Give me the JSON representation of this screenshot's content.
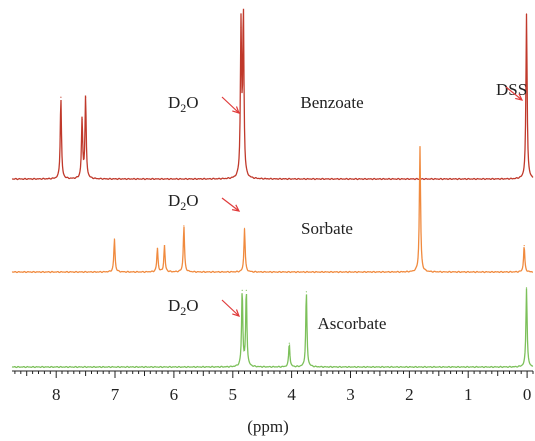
{
  "chart_data": {
    "type": "line",
    "title": "",
    "xlabel": "(ppm)",
    "ylabel": "",
    "x_reversed": true,
    "xlim": [
      8.75,
      -0.1
    ],
    "major_ticks": [
      8,
      7,
      6,
      5,
      4,
      3,
      2,
      1,
      0
    ],
    "minor_tick_step": 0.1,
    "grid": false,
    "series": [
      {
        "name": "Benzoate",
        "color": "#c0392b",
        "peaks": [
          {
            "ppm": 7.92,
            "height": 0.62
          },
          {
            "ppm": 7.56,
            "height": 0.45
          },
          {
            "ppm": 7.5,
            "height": 0.62
          },
          {
            "ppm": 4.86,
            "height": 1.15
          },
          {
            "ppm": 4.82,
            "height": 1.25
          },
          {
            "ppm": 0.01,
            "height": 1.25
          }
        ]
      },
      {
        "name": "Sorbate",
        "color": "#f08a3e",
        "peaks": [
          {
            "ppm": 7.01,
            "height": 0.25
          },
          {
            "ppm": 6.28,
            "height": 0.18
          },
          {
            "ppm": 6.16,
            "height": 0.2
          },
          {
            "ppm": 5.83,
            "height": 0.35
          },
          {
            "ppm": 4.8,
            "height": 0.33
          },
          {
            "ppm": 1.82,
            "height": 0.95
          },
          {
            "ppm": 0.05,
            "height": 0.2
          }
        ]
      },
      {
        "name": "Ascorbate",
        "color": "#7cc05a",
        "peaks": [
          {
            "ppm": 4.84,
            "height": 0.58
          },
          {
            "ppm": 4.77,
            "height": 0.58
          },
          {
            "ppm": 4.04,
            "height": 0.18
          },
          {
            "ppm": 3.75,
            "height": 0.57
          },
          {
            "ppm": 0.01,
            "height": 0.6
          }
        ]
      }
    ],
    "annotations": [
      {
        "id": "d2o-benzoate",
        "prefix": "D",
        "subscript": "2",
        "suffix": "O"
      },
      {
        "id": "dss",
        "text": "DSS"
      },
      {
        "id": "d2o-sorbate",
        "prefix": "D",
        "subscript": "2",
        "suffix": "O"
      },
      {
        "id": "d2o-ascorbate",
        "prefix": "D",
        "subscript": "2",
        "suffix": "O"
      }
    ],
    "series_labels": [
      "Benzoate",
      "Sorbate",
      "Ascorbate"
    ],
    "arrow_color": "#e03a3a"
  }
}
